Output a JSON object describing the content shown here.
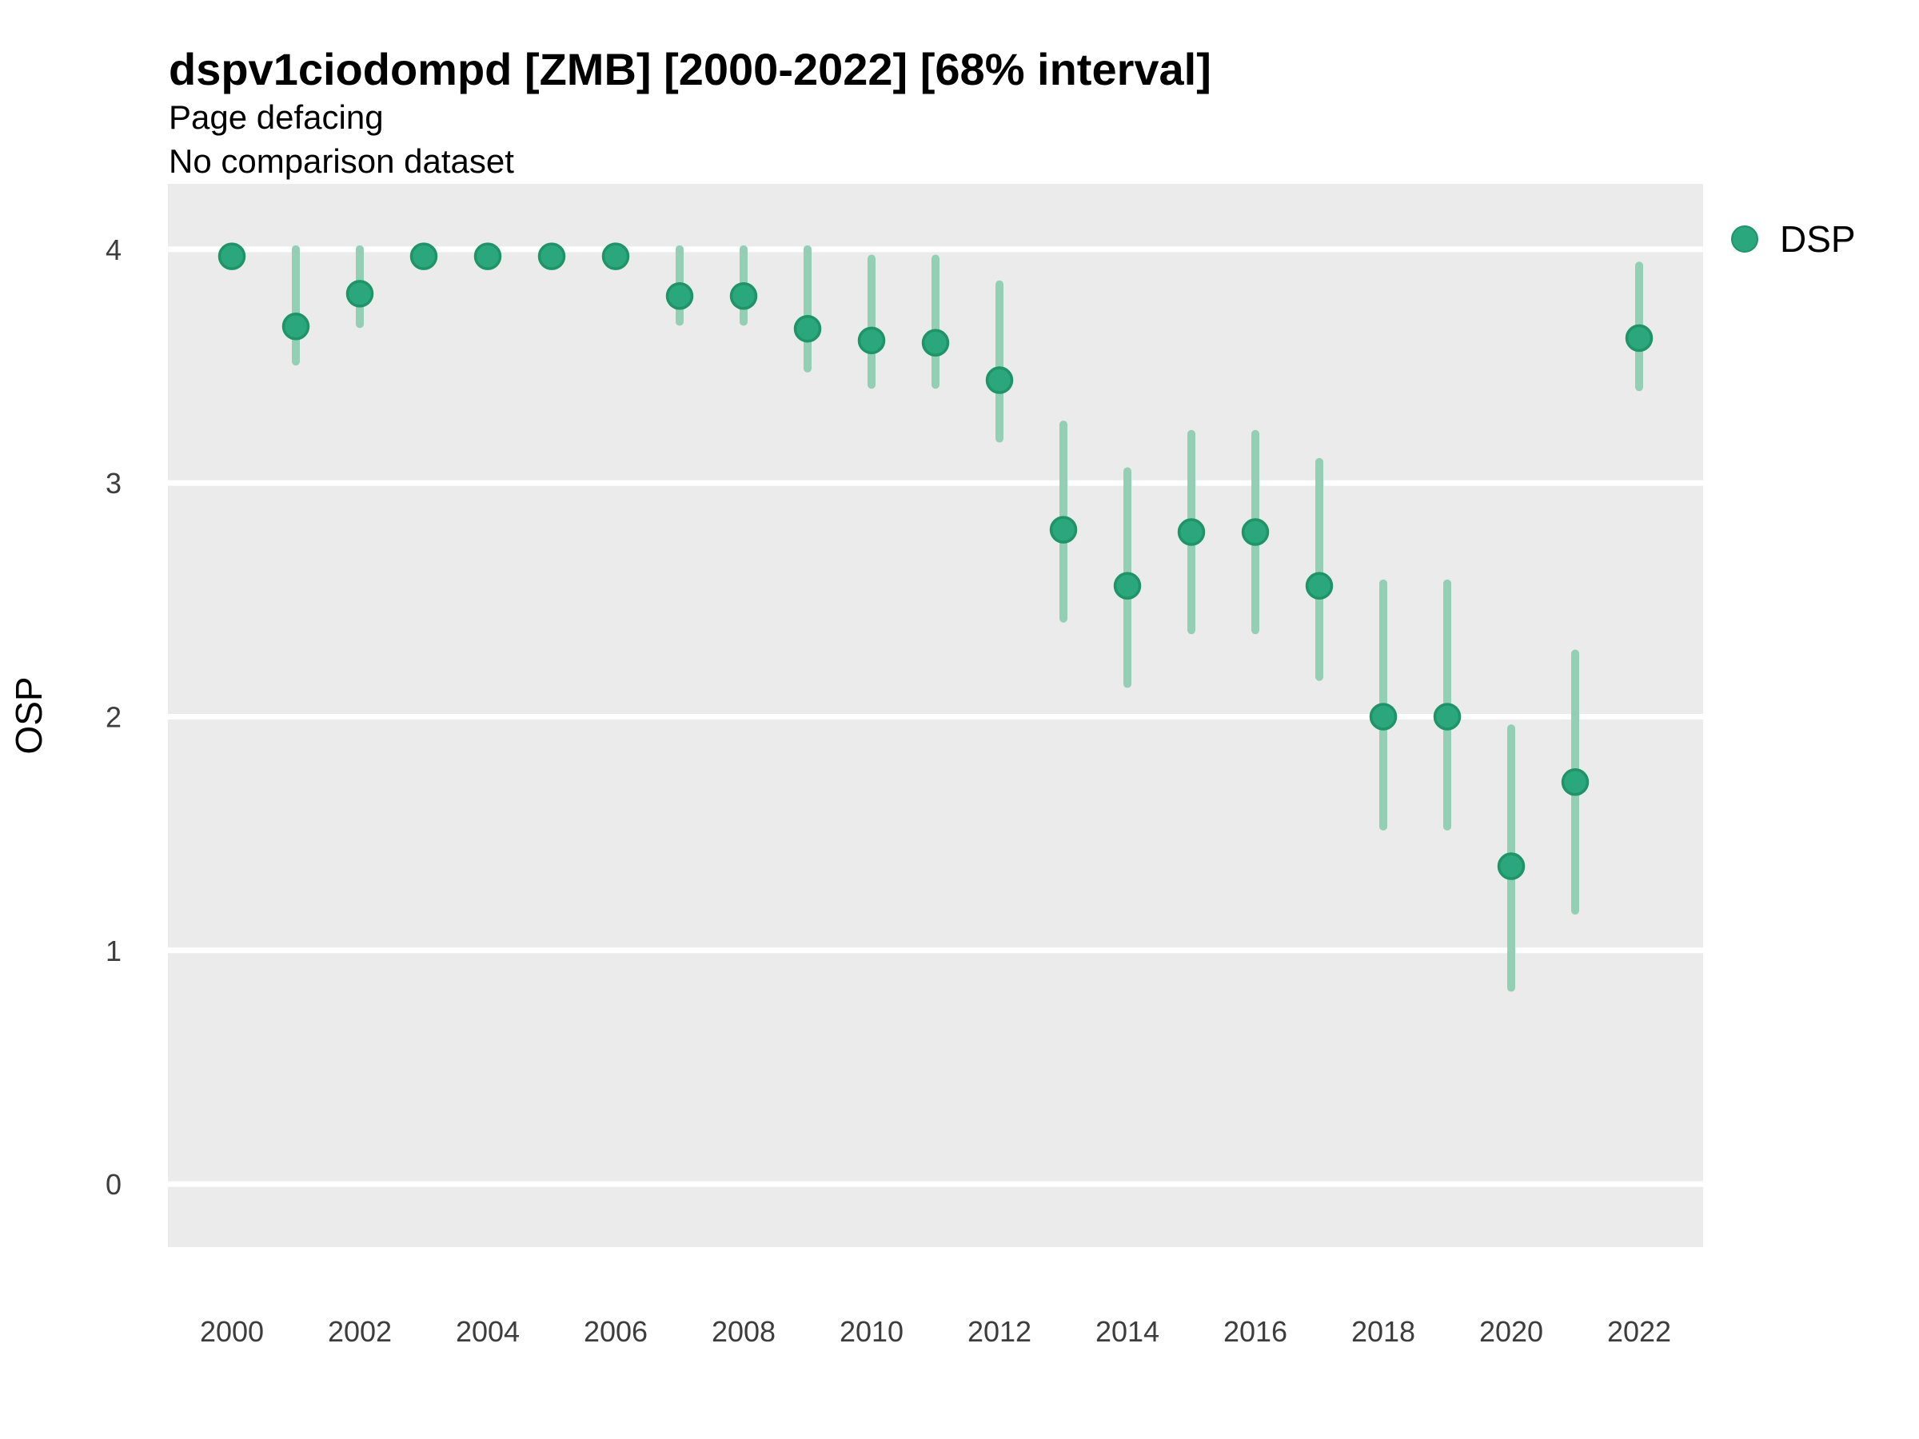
{
  "header": {
    "title": "dspv1ciodompd [ZMB] [2000-2022] [68% interval]",
    "subtitle": "Page defacing",
    "note": "No comparison dataset"
  },
  "axes": {
    "y_label": "OSP",
    "x_tick_labels": [
      "2000",
      "2002",
      "2004",
      "2006",
      "2008",
      "2010",
      "2012",
      "2014",
      "2016",
      "2018",
      "2020",
      "2022"
    ],
    "y_tick_labels": [
      "0",
      "1",
      "2",
      "3",
      "4"
    ]
  },
  "legend": {
    "position": "right",
    "items": [
      {
        "label": "DSP",
        "color": "#2aa77c"
      }
    ]
  },
  "colors": {
    "panel_background": "#ebebeb",
    "gridline": "#ffffff",
    "marker_fill": "#2aa77c",
    "marker_stroke": "#1e9469",
    "interval_bar": "#92cfb4",
    "tick_text": "#3d3d3d",
    "title_text": "#000000"
  },
  "chart_data": {
    "type": "scatter",
    "title": "dspv1ciodompd [ZMB] [2000-2022] [68% interval]",
    "subtitle": "Page defacing",
    "note": "No comparison dataset",
    "xlabel": "",
    "ylabel": "OSP",
    "interval": "68%",
    "grid": "horizontal-only",
    "legend_position": "right",
    "xlim": [
      1999,
      2023
    ],
    "ylim": [
      -0.27,
      4.28
    ],
    "x_ticks": [
      2000,
      2002,
      2004,
      2006,
      2008,
      2010,
      2012,
      2014,
      2016,
      2018,
      2020,
      2022
    ],
    "y_ticks": [
      0,
      1,
      2,
      3,
      4
    ],
    "series": [
      {
        "name": "DSP",
        "x": [
          2000,
          2001,
          2002,
          2003,
          2004,
          2005,
          2006,
          2007,
          2008,
          2009,
          2010,
          2011,
          2012,
          2013,
          2014,
          2015,
          2016,
          2017,
          2018,
          2019,
          2020,
          2021,
          2022
        ],
        "y": [
          3.97,
          3.67,
          3.81,
          3.97,
          3.97,
          3.97,
          3.97,
          3.8,
          3.8,
          3.66,
          3.61,
          3.6,
          3.44,
          2.8,
          2.56,
          2.79,
          2.79,
          2.56,
          2.0,
          2.0,
          1.36,
          1.72,
          3.62
        ],
        "y_lo": [
          3.93,
          3.52,
          3.68,
          3.93,
          3.93,
          3.93,
          3.93,
          3.69,
          3.69,
          3.49,
          3.42,
          3.42,
          3.19,
          2.42,
          2.14,
          2.37,
          2.37,
          2.17,
          1.53,
          1.53,
          0.84,
          1.17,
          3.41
        ],
        "y_hi": [
          4.0,
          4.0,
          4.0,
          4.0,
          4.0,
          4.0,
          4.0,
          4.0,
          4.0,
          4.0,
          3.96,
          3.96,
          3.85,
          3.25,
          3.05,
          3.21,
          3.21,
          3.09,
          2.57,
          2.57,
          1.95,
          2.27,
          3.93
        ]
      }
    ]
  }
}
